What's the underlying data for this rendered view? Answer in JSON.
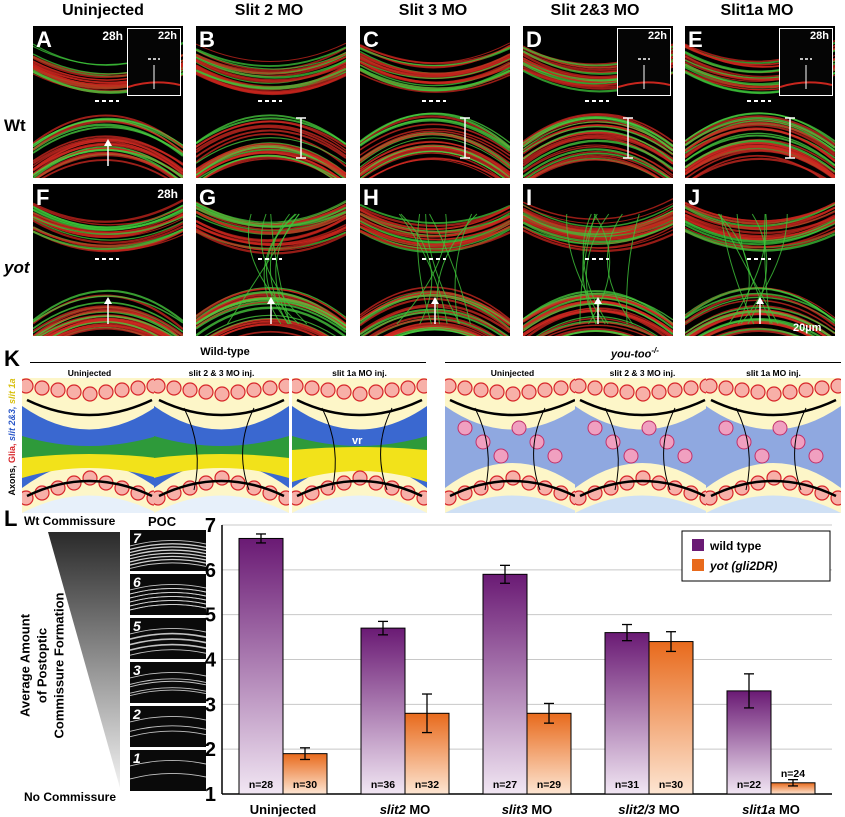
{
  "columns": [
    "Uninjected",
    "Slit 2 MO",
    "Slit 3 MO",
    "Slit 2&3 MO",
    "Slit1a MO"
  ],
  "rows": [
    "Wt",
    "yot"
  ],
  "panels": [
    {
      "letter": "A",
      "time": "28h",
      "inset": "22h"
    },
    {
      "letter": "B"
    },
    {
      "letter": "C"
    },
    {
      "letter": "D",
      "inset": "22h"
    },
    {
      "letter": "E",
      "inset": "28h"
    },
    {
      "letter": "F",
      "time": "28h"
    },
    {
      "letter": "G"
    },
    {
      "letter": "H"
    },
    {
      "letter": "I"
    },
    {
      "letter": "J"
    }
  ],
  "scale_bar": "20µm",
  "section_k": {
    "letter": "K",
    "wildtype_header": "Wild-type",
    "mutant_header": "you-too",
    "mutant_sup": "-/-",
    "side_label_parts": [
      "Axons, ",
      "Glia, ",
      "slit 2&3, ",
      "slit 1a"
    ],
    "side_label_colors": [
      "#000000",
      "#d7262a",
      "#2a57c8",
      "#e8d21a"
    ],
    "schematic_titles": [
      "Uninjected",
      "slit 2 & 3 MO inj.",
      "slit 1a MO inj.",
      "Uninjected",
      "slit 2 & 3 MO inj.",
      "slit 1a MO inj."
    ],
    "vr_label": "vr"
  },
  "section_l": {
    "letter": "L",
    "top_label": "Wt Commissure",
    "bottom_label": "No Commissure",
    "poc_label": "POC",
    "poc_scores": [
      "7",
      "6",
      "5",
      "3",
      "2",
      "1"
    ],
    "ylabel_lines": [
      "Average Amount",
      "of Postoptic",
      "Commissure Formation"
    ]
  },
  "chart_data": {
    "type": "bar",
    "categories": [
      "Uninjected",
      "slit2 MO",
      "slit3 MO",
      "slit2/3 MO",
      "slit1a MO"
    ],
    "series": [
      {
        "name": "wild type",
        "values": [
          6.7,
          4.7,
          5.9,
          4.6,
          3.3
        ],
        "errors": [
          0.1,
          0.15,
          0.2,
          0.18,
          0.38
        ],
        "n": [
          "n=28",
          "n=36",
          "n=27",
          "n=31",
          "n=22"
        ]
      },
      {
        "name": "yot (gli2DR)",
        "values": [
          1.9,
          2.8,
          2.8,
          4.4,
          1.25
        ],
        "errors": [
          0.13,
          0.43,
          0.22,
          0.22,
          0.07
        ],
        "n": [
          "n=30",
          "n=32",
          "n=29",
          "n=30",
          "n=24"
        ]
      }
    ],
    "ylim": [
      1,
      7
    ],
    "yticks": [
      "1",
      "2",
      "3",
      "4",
      "5",
      "6",
      "7"
    ],
    "colors": {
      "wild_type": "#6a1a74",
      "yot": "#e86a1c"
    },
    "grid": true,
    "legend_position": "top-right"
  }
}
